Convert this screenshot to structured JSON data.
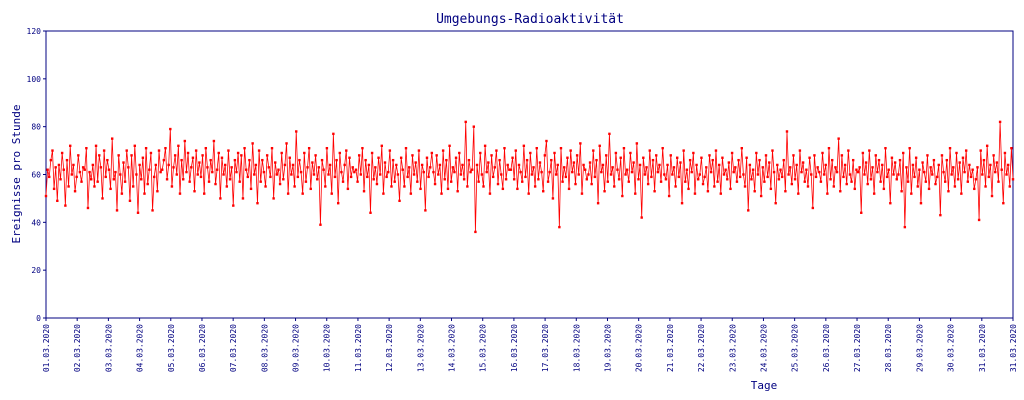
{
  "chart_data": {
    "type": "line",
    "title": "Umgebungs-Radioaktivität",
    "xlabel": "Tage",
    "ylabel": "Ereignisse pro Stunde",
    "ylim": [
      0,
      120
    ],
    "yticks": [
      "0",
      "20",
      "40",
      "60",
      "80",
      "100",
      "120"
    ],
    "xticks": [
      "01.03.2020",
      "02.03.2020",
      "03.03.2020",
      "04.03.2020",
      "05.03.2020",
      "06.03.2020",
      "07.03.2020",
      "08.03.2020",
      "09.03.2020",
      "10.03.2020",
      "11.03.2020",
      "12.03.2020",
      "13.03.2020",
      "14.03.2020",
      "15.03.2020",
      "16.03.2020",
      "17.03.2020",
      "18.03.2020",
      "19.03.2020",
      "20.03.2020",
      "21.03.2020",
      "22.03.2020",
      "23.03.2020",
      "24.03.2020",
      "25.03.2020",
      "26.03.2020",
      "27.03.2020",
      "28.03.2020",
      "29.03.2020",
      "30.03.2020",
      "31.03.2020",
      "31.03.2020"
    ],
    "x_start": "01.03.2020 00:00",
    "x_end": "31.03.2020 24:00",
    "sampling": "hourly",
    "grid": false,
    "series": [
      {
        "color": "#ff0000",
        "marker": "square",
        "values": [
          51,
          62,
          59,
          66,
          70,
          54,
          63,
          49,
          64,
          58,
          69,
          62,
          47,
          66,
          55,
          72,
          60,
          64,
          53,
          59,
          68,
          61,
          57,
          63,
          62,
          71,
          46,
          61,
          58,
          64,
          55,
          72,
          57,
          68,
          63,
          50,
          70,
          59,
          66,
          62,
          54,
          75,
          58,
          61,
          45,
          68,
          60,
          52,
          65,
          57,
          70,
          63,
          49,
          68,
          55,
          72,
          60,
          44,
          64,
          58,
          67,
          52,
          71,
          56,
          62,
          69,
          45,
          59,
          64,
          53,
          70,
          61,
          62,
          66,
          71,
          58,
          64,
          79,
          55,
          63,
          68,
          60,
          72,
          52,
          66,
          58,
          74,
          61,
          69,
          57,
          63,
          67,
          53,
          70,
          60,
          65,
          59,
          68,
          52,
          71,
          63,
          57,
          66,
          61,
          74,
          56,
          62,
          69,
          50,
          67,
          60,
          64,
          55,
          70,
          58,
          63,
          47,
          66,
          61,
          69,
          57,
          68,
          50,
          71,
          62,
          59,
          66,
          54,
          73,
          60,
          64,
          48,
          70,
          57,
          66,
          61,
          55,
          68,
          63,
          59,
          71,
          50,
          65,
          60,
          62,
          56,
          69,
          58,
          64,
          73,
          52,
          67,
          60,
          64,
          55,
          78,
          59,
          66,
          61,
          52,
          69,
          57,
          63,
          71,
          54,
          65,
          60,
          68,
          58,
          63,
          39,
          66,
          62,
          55,
          71,
          60,
          64,
          52,
          77,
          59,
          66,
          48,
          69,
          61,
          57,
          64,
          70,
          54,
          67,
          59,
          63,
          61,
          62,
          57,
          68,
          60,
          71,
          53,
          66,
          59,
          64,
          44,
          69,
          58,
          63,
          56,
          67,
          60,
          72,
          52,
          65,
          59,
          61,
          70,
          55,
          66,
          57,
          64,
          60,
          49,
          67,
          62,
          55,
          71,
          59,
          63,
          52,
          68,
          60,
          65,
          57,
          70,
          54,
          64,
          61,
          45,
          67,
          59,
          63,
          69,
          61,
          56,
          68,
          60,
          64,
          52,
          70,
          58,
          66,
          54,
          72,
          57,
          63,
          61,
          67,
          53,
          69,
          60,
          64,
          58,
          82,
          55,
          66,
          61,
          62,
          80,
          36,
          64,
          57,
          69,
          60,
          55,
          72,
          61,
          65,
          52,
          68,
          59,
          63,
          70,
          56,
          66,
          60,
          54,
          71,
          58,
          64,
          62,
          62,
          67,
          58,
          70,
          54,
          64,
          61,
          57,
          72,
          59,
          66,
          52,
          69,
          60,
          63,
          55,
          71,
          58,
          65,
          61,
          53,
          68,
          74,
          57,
          61,
          66,
          50,
          69,
          60,
          64,
          38,
          71,
          57,
          63,
          59,
          67,
          54,
          70,
          61,
          65,
          56,
          68,
          60,
          73,
          52,
          64,
          62,
          58,
          60,
          65,
          56,
          70,
          59,
          66,
          48,
          72,
          61,
          64,
          53,
          68,
          57,
          77,
          60,
          63,
          55,
          69,
          62,
          58,
          67,
          51,
          71,
          60,
          62,
          57,
          69,
          61,
          65,
          52,
          73,
          58,
          64,
          42,
          67,
          60,
          63,
          56,
          70,
          59,
          66,
          53,
          68,
          61,
          64,
          57,
          71,
          60,
          58,
          64,
          51,
          68,
          60,
          63,
          55,
          67,
          59,
          65,
          48,
          70,
          57,
          62,
          54,
          66,
          61,
          69,
          52,
          64,
          58,
          60,
          67,
          56,
          59,
          63,
          53,
          68,
          61,
          66,
          55,
          70,
          57,
          64,
          52,
          67,
          60,
          62,
          58,
          65,
          54,
          69,
          61,
          63,
          57,
          66,
          59,
          71,
          60,
          55,
          67,
          45,
          64,
          58,
          62,
          53,
          69,
          60,
          66,
          51,
          63,
          57,
          68,
          59,
          65,
          54,
          70,
          61,
          48,
          64,
          58,
          62,
          59,
          66,
          53,
          78,
          60,
          63,
          56,
          68,
          58,
          64,
          52,
          70,
          61,
          65,
          57,
          62,
          55,
          67,
          60,
          46,
          68,
          59,
          63,
          61,
          57,
          69,
          60,
          64,
          52,
          71,
          58,
          66,
          55,
          63,
          61,
          75,
          53,
          68,
          59,
          64,
          56,
          70,
          60,
          57,
          66,
          54,
          62,
          61,
          63,
          44,
          69,
          60,
          65,
          56,
          70,
          58,
          63,
          52,
          68,
          61,
          66,
          57,
          64,
          54,
          71,
          59,
          62,
          48,
          67,
          60,
          65,
          58,
          60,
          66,
          53,
          69,
          38,
          63,
          57,
          71,
          52,
          64,
          59,
          67,
          55,
          62,
          48,
          65,
          61,
          57,
          68,
          54,
          63,
          60,
          66,
          56,
          59,
          64,
          43,
          68,
          61,
          57,
          66,
          53,
          71,
          60,
          63,
          55,
          69,
          58,
          65,
          52,
          67,
          61,
          70,
          57,
          64,
          59,
          62,
          54,
          58,
          63,
          41,
          70,
          60,
          66,
          55,
          72,
          59,
          64,
          51,
          68,
          61,
          65,
          57,
          82,
          62,
          48,
          69,
          60,
          64,
          55,
          71,
          58
        ],
        "note": ""
      }
    ]
  }
}
